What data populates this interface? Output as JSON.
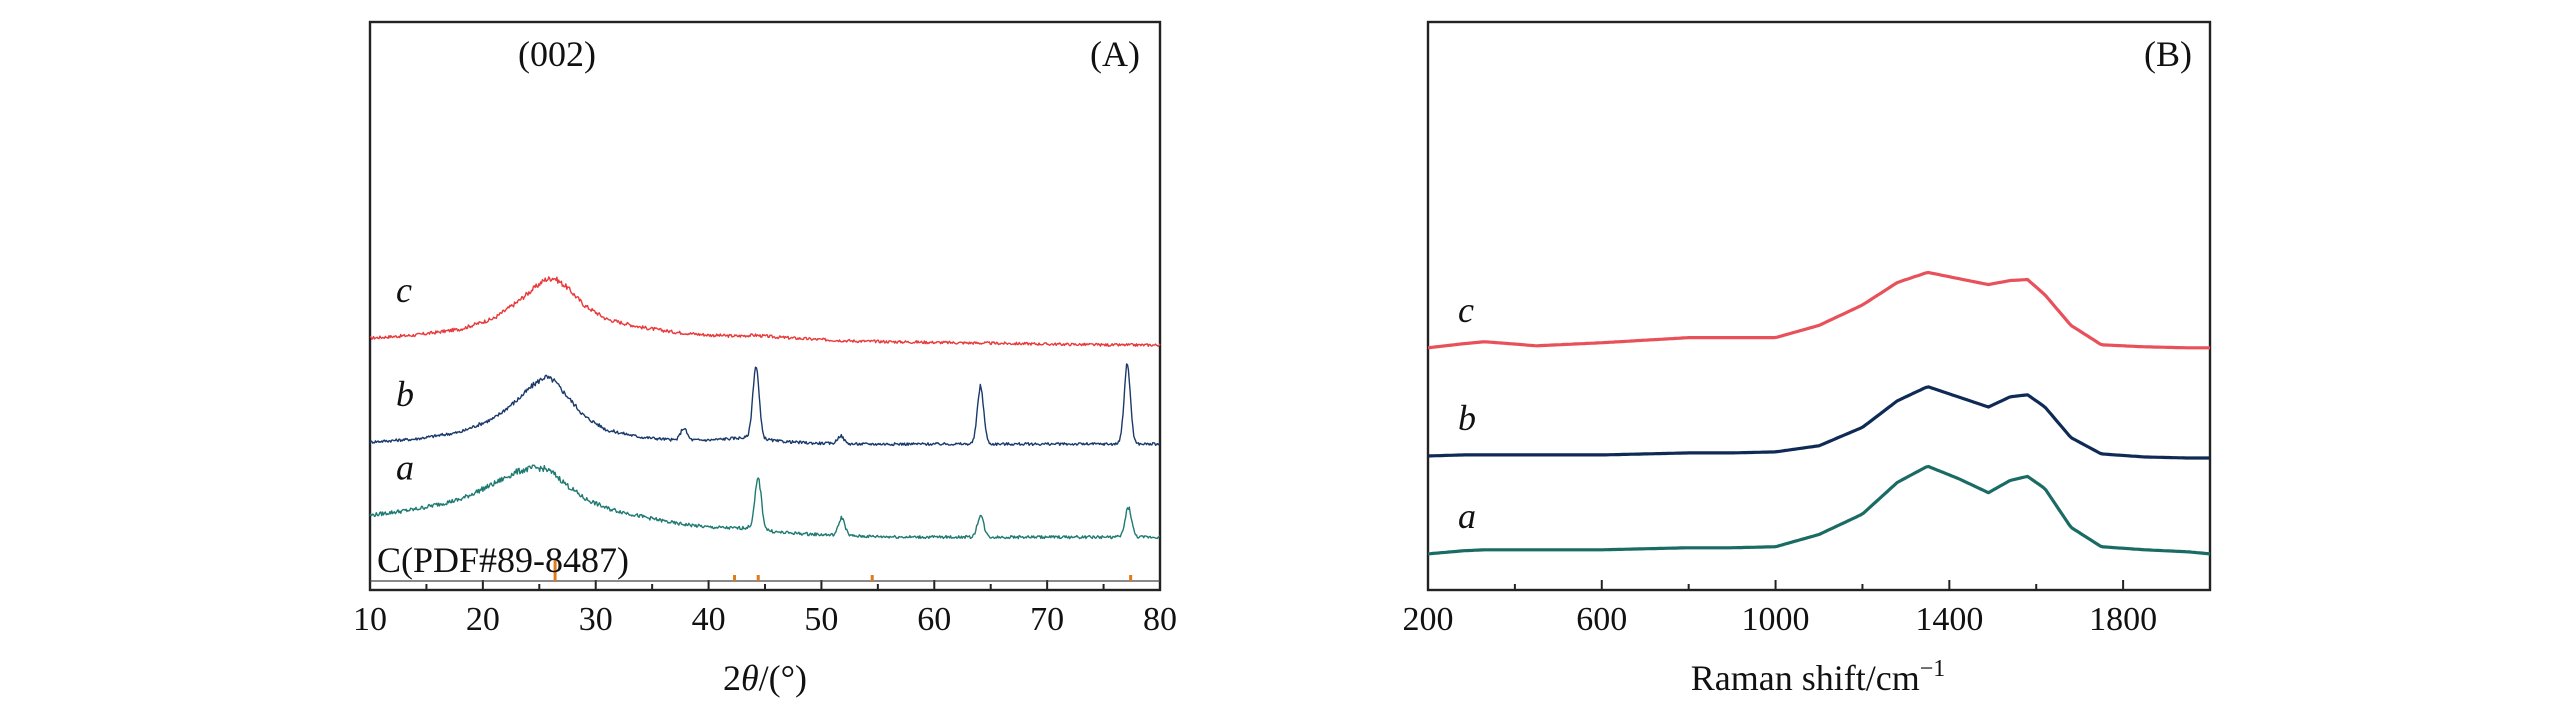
{
  "chart_data": [
    {
      "panel": "(A)",
      "type": "line",
      "xlabel_prefix": "2",
      "xlabel_symbol": "θ",
      "xlabel_suffix": "/(°)",
      "ylabel": "",
      "xlim": [
        10,
        80
      ],
      "xticks": [
        "10",
        "20",
        "30",
        "40",
        "50",
        "60",
        "70",
        "80"
      ],
      "annotations": {
        "peak_label": "(002)",
        "reference": "C(PDF#89-8487)"
      },
      "reference_peaks": [
        26.4,
        42.3,
        44.4,
        54.5,
        77.4
      ],
      "series": [
        {
          "name": "c",
          "color": "#e8393b",
          "offset": 2.0,
          "x": [
            10,
            14,
            18,
            21,
            23,
            24.5,
            25.5,
            26.3,
            27.5,
            29,
            31,
            34,
            37,
            40,
            42.5,
            44,
            46,
            49,
            53,
            58,
            64,
            70,
            76,
            80
          ],
          "y": [
            0.09,
            0.12,
            0.18,
            0.29,
            0.45,
            0.59,
            0.68,
            0.7,
            0.6,
            0.42,
            0.28,
            0.2,
            0.15,
            0.12,
            0.11,
            0.12,
            0.1,
            0.08,
            0.06,
            0.05,
            0.04,
            0.03,
            0.02,
            0.02
          ],
          "peaks": []
        },
        {
          "name": "b",
          "color": "#1b3a6b",
          "offset": 1.0,
          "x": [
            10,
            14,
            18,
            21,
            23,
            24.5,
            25.5,
            26.3,
            27.5,
            29,
            31,
            34,
            37,
            40,
            42.5,
            44,
            46,
            49,
            53,
            58,
            64,
            70,
            76,
            80
          ],
          "y": [
            0.04,
            0.07,
            0.14,
            0.28,
            0.46,
            0.62,
            0.7,
            0.66,
            0.5,
            0.3,
            0.16,
            0.09,
            0.06,
            0.06,
            0.08,
            0.09,
            0.05,
            0.03,
            0.02,
            0.02,
            0.02,
            0.02,
            0.02,
            0.02
          ],
          "peaks": [
            [
              37.8,
              0.12
            ],
            [
              44.2,
              0.72
            ],
            [
              51.7,
              0.08
            ],
            [
              64.1,
              0.58
            ],
            [
              77.1,
              0.8
            ]
          ]
        },
        {
          "name": "a",
          "color": "#1f7a72",
          "offset": 0.0,
          "x": [
            10,
            14,
            18,
            21,
            23,
            24.5,
            25.5,
            26.3,
            27.5,
            29,
            31,
            34,
            37,
            40,
            42.5,
            44,
            46,
            49,
            53,
            58,
            64,
            70,
            76,
            80
          ],
          "y": [
            0.3,
            0.36,
            0.46,
            0.62,
            0.74,
            0.78,
            0.77,
            0.72,
            0.6,
            0.47,
            0.37,
            0.29,
            0.22,
            0.18,
            0.17,
            0.18,
            0.13,
            0.11,
            0.09,
            0.08,
            0.08,
            0.08,
            0.08,
            0.08
          ],
          "peaks": [
            [
              44.4,
              0.5
            ],
            [
              51.8,
              0.18
            ],
            [
              64.1,
              0.22
            ],
            [
              77.2,
              0.3
            ]
          ]
        }
      ]
    },
    {
      "panel": "(B)",
      "type": "line",
      "xlabel": "Raman shift/cm",
      "xlabel_sup": "−1",
      "ylabel": "",
      "xlim": [
        200,
        2000
      ],
      "xticks": [
        "200",
        "600",
        "1000",
        "1400",
        "1800"
      ],
      "series": [
        {
          "name": "c",
          "color": "#e8505a",
          "offset": 2.0,
          "x": [
            200,
            280,
            330,
            450,
            600,
            800,
            900,
            1000,
            1100,
            1200,
            1280,
            1350,
            1420,
            1490,
            1540,
            1580,
            1620,
            1680,
            1750,
            1850,
            1950,
            2000
          ],
          "y": [
            0.08,
            0.12,
            0.14,
            0.1,
            0.13,
            0.18,
            0.18,
            0.18,
            0.3,
            0.5,
            0.72,
            0.82,
            0.76,
            0.7,
            0.74,
            0.75,
            0.6,
            0.3,
            0.11,
            0.09,
            0.08,
            0.08
          ],
          "peaks": []
        },
        {
          "name": "b",
          "color": "#0f2a55",
          "offset": 1.0,
          "x": [
            200,
            280,
            330,
            450,
            600,
            800,
            900,
            1000,
            1100,
            1200,
            1280,
            1350,
            1420,
            1490,
            1540,
            1580,
            1620,
            1680,
            1750,
            1850,
            1950,
            2000
          ],
          "y": [
            0.02,
            0.03,
            0.03,
            0.03,
            0.03,
            0.05,
            0.05,
            0.06,
            0.12,
            0.3,
            0.56,
            0.7,
            0.6,
            0.5,
            0.6,
            0.62,
            0.5,
            0.2,
            0.04,
            0.01,
            0.0,
            0.0
          ],
          "peaks": []
        },
        {
          "name": "a",
          "color": "#1a6b64",
          "offset": 0.0,
          "x": [
            200,
            280,
            330,
            450,
            600,
            800,
            900,
            1000,
            1100,
            1200,
            1280,
            1350,
            1420,
            1490,
            1540,
            1580,
            1620,
            1680,
            1750,
            1850,
            1950,
            2000
          ],
          "y": [
            0.06,
            0.09,
            0.1,
            0.1,
            0.1,
            0.12,
            0.12,
            0.13,
            0.25,
            0.45,
            0.76,
            0.92,
            0.8,
            0.66,
            0.78,
            0.82,
            0.7,
            0.32,
            0.13,
            0.1,
            0.08,
            0.06
          ],
          "peaks": []
        }
      ]
    }
  ]
}
